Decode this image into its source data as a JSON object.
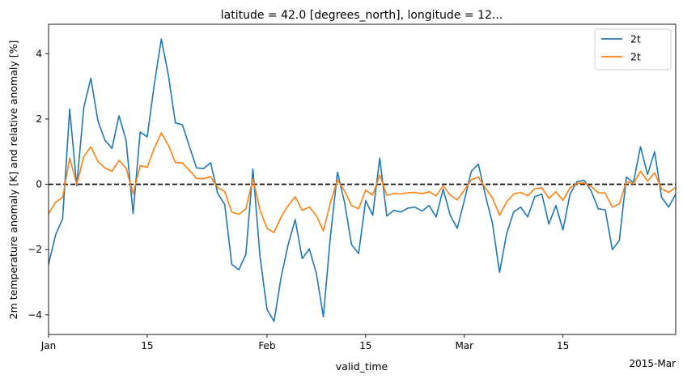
{
  "chart_data": {
    "type": "line",
    "title": "latitude = 42.0 [degrees_north], longitude = 12...",
    "xlabel": "valid_time",
    "ylabel": "2m temperature anomaly [K] and relative anomaly [%]",
    "x_start": "2015-01-01",
    "x_end": "2015-03-31",
    "ylim": [
      -4.6,
      4.9
    ],
    "yticks": [
      -4,
      -2,
      0,
      2,
      4
    ],
    "xticks": [
      {
        "date": "2015-01-01",
        "label": "Jan"
      },
      {
        "date": "2015-01-15",
        "label": "15"
      },
      {
        "date": "2015-02-01",
        "label": "Feb"
      },
      {
        "date": "2015-02-15",
        "label": "15"
      },
      {
        "date": "2015-03-01",
        "label": "Mar"
      },
      {
        "date": "2015-03-15",
        "label": "15"
      }
    ],
    "x_offset_label": "2015-Mar",
    "reference_line": {
      "y": 0,
      "style": "dashed",
      "color": "#000000"
    },
    "grid": false,
    "legend_position": "top-right",
    "series": [
      {
        "name": "2t",
        "color": "#1f77b4",
        "values": [
          -2.45,
          -1.55,
          -1.05,
          2.3,
          -0.05,
          2.35,
          3.25,
          1.95,
          1.35,
          1.1,
          2.1,
          1.35,
          -0.9,
          1.6,
          1.45,
          3.05,
          4.45,
          3.35,
          1.88,
          1.82,
          1.15,
          0.5,
          0.48,
          0.66,
          -0.28,
          -0.62,
          -2.45,
          -2.62,
          -2.15,
          0.47,
          -2.2,
          -3.83,
          -4.2,
          -2.85,
          -1.85,
          -1.08,
          -2.28,
          -1.98,
          -2.72,
          -4.06,
          -1.6,
          0.37,
          -0.55,
          -1.85,
          -2.12,
          -0.5,
          -0.95,
          0.8,
          -0.97,
          -0.8,
          -0.85,
          -0.73,
          -0.7,
          -0.82,
          -0.65,
          -1.0,
          -0.15,
          -0.95,
          -1.35,
          -0.5,
          0.4,
          0.62,
          -0.35,
          -1.2,
          -2.7,
          -1.52,
          -0.85,
          -0.7,
          -1.0,
          -0.38,
          -0.3,
          -1.22,
          -0.65,
          -1.4,
          -0.3,
          0.08,
          0.12,
          -0.2,
          -0.75,
          -0.78,
          -2.0,
          -1.72,
          0.22,
          0.05,
          1.15,
          0.3,
          1.0,
          -0.4,
          -0.7,
          -0.3
        ]
      },
      {
        "name": "2t",
        "color": "#ff7f0e",
        "values": [
          -0.9,
          -0.55,
          -0.4,
          0.8,
          0.0,
          0.85,
          1.15,
          0.7,
          0.5,
          0.4,
          0.73,
          0.5,
          -0.3,
          0.57,
          0.52,
          1.1,
          1.57,
          1.2,
          0.67,
          0.65,
          0.42,
          0.18,
          0.17,
          0.23,
          -0.1,
          -0.22,
          -0.85,
          -0.92,
          -0.75,
          0.17,
          -0.78,
          -1.35,
          -1.48,
          -1.0,
          -0.65,
          -0.38,
          -0.8,
          -0.7,
          -0.96,
          -1.43,
          -0.56,
          0.13,
          -0.2,
          -0.65,
          -0.75,
          -0.18,
          -0.33,
          0.28,
          -0.34,
          -0.28,
          -0.3,
          -0.26,
          -0.25,
          -0.29,
          -0.23,
          -0.35,
          -0.05,
          -0.33,
          -0.48,
          -0.18,
          0.14,
          0.22,
          -0.12,
          -0.42,
          -0.95,
          -0.54,
          -0.3,
          -0.25,
          -0.35,
          -0.13,
          -0.11,
          -0.43,
          -0.23,
          -0.49,
          -0.11,
          0.03,
          0.04,
          -0.07,
          -0.26,
          -0.27,
          -0.7,
          -0.6,
          0.08,
          0.02,
          0.4,
          0.1,
          0.35,
          -0.14,
          -0.25,
          -0.1
        ]
      }
    ]
  }
}
